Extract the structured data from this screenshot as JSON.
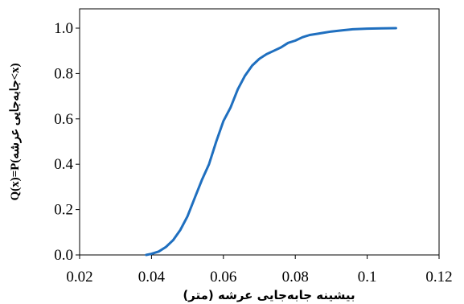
{
  "chart_data": {
    "type": "line",
    "title": "",
    "xlabel": "بیشینه جابه‌جایی عرشه (متر)",
    "ylabel": "Q(x)=P(جابه‌جایی عرشه<x)",
    "xlim": [
      0.02,
      0.12
    ],
    "ylim": [
      0.0,
      1.0
    ],
    "x_ticks": [
      0.02,
      0.04,
      0.06,
      0.08,
      0.1,
      0.12
    ],
    "x_tick_labels": [
      "0.02",
      "0.04",
      "0.06",
      "0.08",
      "0.1",
      "0.12"
    ],
    "y_ticks": [
      0.0,
      0.2,
      0.4,
      0.6,
      0.8,
      1.0
    ],
    "y_tick_labels": [
      "0.0",
      "0.2",
      "0.4",
      "0.6",
      "0.8",
      "1.0"
    ],
    "grid": false,
    "legend": "none",
    "series": [
      {
        "color": "#1f6fbf",
        "x": [
          0.0385,
          0.04,
          0.042,
          0.044,
          0.046,
          0.048,
          0.05,
          0.052,
          0.054,
          0.056,
          0.058,
          0.06,
          0.062,
          0.064,
          0.066,
          0.068,
          0.07,
          0.072,
          0.074,
          0.076,
          0.078,
          0.08,
          0.082,
          0.084,
          0.086,
          0.088,
          0.09,
          0.093,
          0.096,
          0.1,
          0.104,
          0.108
        ],
        "y": [
          0.0,
          0.005,
          0.015,
          0.035,
          0.065,
          0.11,
          0.17,
          0.25,
          0.33,
          0.4,
          0.5,
          0.59,
          0.65,
          0.73,
          0.79,
          0.835,
          0.865,
          0.885,
          0.9,
          0.915,
          0.935,
          0.945,
          0.96,
          0.97,
          0.975,
          0.98,
          0.985,
          0.99,
          0.995,
          0.998,
          0.999,
          1.0
        ]
      }
    ]
  }
}
